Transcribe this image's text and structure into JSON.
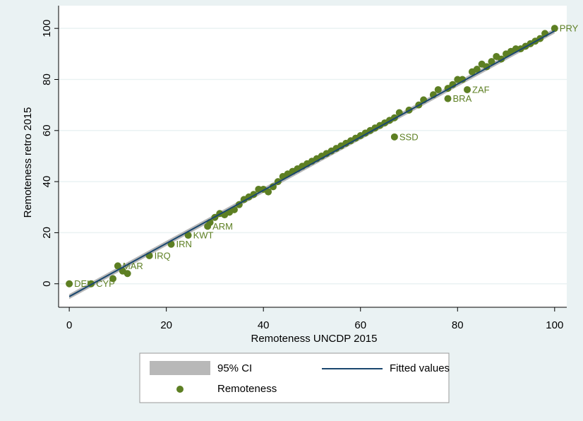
{
  "chart_data": {
    "type": "scatter",
    "xlabel": "Remoteness UNCDP 2015",
    "ylabel": "Remoteness retro 2015",
    "xlim": [
      -2.2,
      102.5
    ],
    "ylim": [
      -9.2,
      108.9
    ],
    "xticks": [
      0,
      20,
      40,
      60,
      80,
      100
    ],
    "yticks": [
      0,
      20,
      40,
      60,
      80,
      100
    ],
    "grid": true,
    "legend": "bottom",
    "ci": {
      "name": "95% CI",
      "color": "#b8b8b8",
      "x": [
        0,
        100
      ],
      "lower": [
        -6,
        98
      ],
      "upper": [
        -4,
        100
      ]
    },
    "fit": {
      "name": "Fitted values",
      "color": "#1a476f",
      "x": [
        0,
        100
      ],
      "values": [
        -5,
        99
      ]
    },
    "series": [
      {
        "name": "Remoteness",
        "color": "#5d7f23",
        "x": [
          0,
          4.5,
          9,
          10,
          11,
          12,
          16.5,
          21,
          24.5,
          28.5,
          29,
          30,
          31,
          32,
          33,
          34,
          35,
          36,
          37,
          38,
          39,
          40,
          41,
          42,
          43,
          44,
          45,
          46,
          47,
          48,
          49,
          50,
          51,
          52,
          53,
          54,
          55,
          56,
          57,
          58,
          59,
          60,
          61,
          62,
          63,
          64,
          65,
          66,
          67,
          67,
          68,
          70,
          72,
          73,
          75,
          76,
          78,
          78,
          79,
          80,
          81,
          82,
          83,
          84,
          85,
          86,
          87,
          88,
          89,
          90,
          91,
          92,
          93,
          94,
          95,
          96,
          97,
          98,
          100
        ],
        "values": [
          0,
          0,
          2,
          7,
          5,
          4,
          11,
          15.5,
          19,
          22.5,
          24,
          26,
          27.5,
          27,
          28,
          29,
          31,
          33,
          34,
          35,
          37,
          37,
          36,
          38,
          40,
          42,
          43,
          44,
          45,
          46,
          47,
          48,
          49,
          50,
          51,
          52,
          53,
          54,
          55,
          56,
          57,
          58,
          59,
          60,
          61,
          62,
          63,
          64,
          65,
          57.5,
          67,
          68,
          70,
          72,
          74,
          76,
          76.5,
          72.5,
          78,
          80,
          80,
          76,
          83,
          84,
          86,
          85,
          87,
          89,
          88,
          90,
          91,
          92,
          92,
          93,
          94,
          95,
          96,
          98,
          100
        ],
        "labels": [
          "DEU",
          "CYP",
          null,
          "MAR",
          null,
          null,
          "IRQ",
          "IRN",
          "KWT",
          "ARM",
          null,
          null,
          null,
          null,
          null,
          null,
          null,
          null,
          null,
          null,
          null,
          null,
          null,
          null,
          null,
          null,
          null,
          null,
          null,
          null,
          null,
          null,
          null,
          null,
          null,
          null,
          null,
          null,
          null,
          null,
          null,
          null,
          null,
          null,
          null,
          null,
          null,
          null,
          null,
          "SSD",
          null,
          null,
          null,
          null,
          null,
          null,
          null,
          "BRA",
          null,
          null,
          null,
          "ZAF",
          null,
          null,
          null,
          null,
          null,
          null,
          null,
          null,
          null,
          null,
          null,
          null,
          null,
          null,
          null,
          null,
          "PRY"
        ]
      }
    ]
  }
}
